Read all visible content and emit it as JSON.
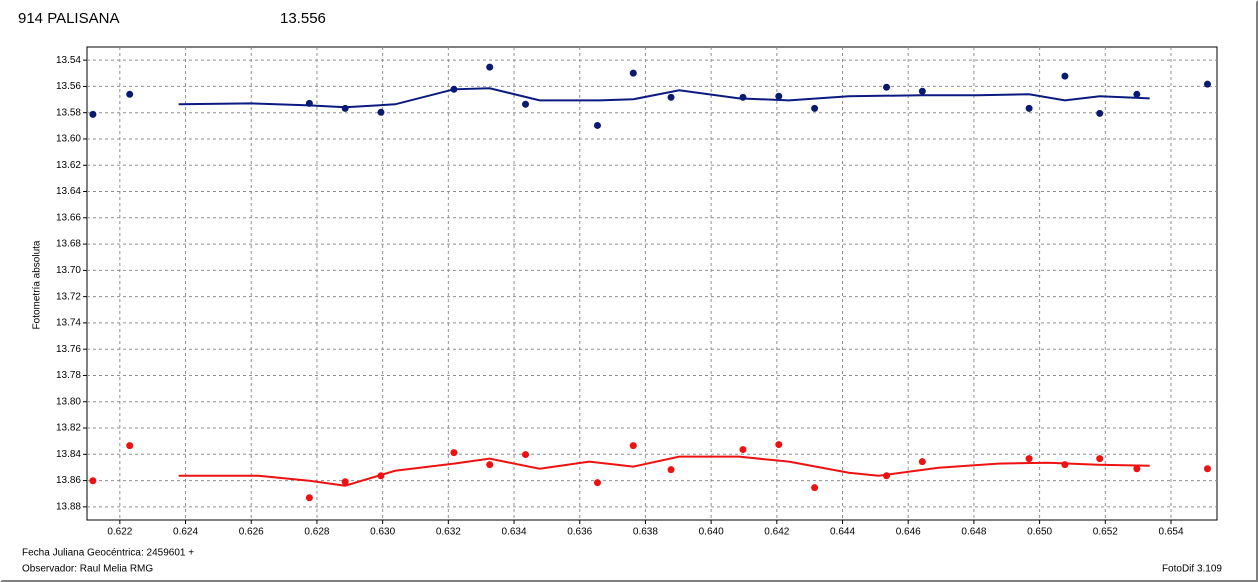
{
  "chart_data": {
    "type": "scatter",
    "title": "914 PALISANA",
    "title_color": "#ee1111",
    "subtitle": "13.556",
    "subtitle_color": "#0a1a80",
    "y_label": "Fotometría absoluta",
    "x_label": "Fecha Juliana Geocéntrica: 2459601 +",
    "observer": "Observador: Raul Melia RMG",
    "software": "FotoDif 3.109",
    "xlim": [
      0.621,
      0.6554
    ],
    "ylim": [
      13.53,
      13.89
    ],
    "y_inverted": true,
    "grid": true,
    "xticks": [
      0.622,
      0.624,
      0.626,
      0.628,
      {
        "value": 0.63,
        "label": "0.630"
      },
      0.632,
      0.634,
      0.636,
      0.638,
      {
        "value": 0.64,
        "label": "0.640"
      },
      0.642,
      0.644,
      0.646,
      0.648,
      {
        "value": 0.65,
        "label": "0.650"
      },
      0.652,
      0.654
    ],
    "yticks": [
      13.54,
      13.56,
      13.58,
      {
        "value": 13.6,
        "label": "13.60"
      },
      13.62,
      13.64,
      13.66,
      13.68,
      {
        "value": 13.7,
        "label": "13.70"
      },
      13.72,
      13.74,
      13.76,
      13.78,
      {
        "value": 13.8,
        "label": "13.80"
      },
      13.82,
      13.84,
      13.86,
      13.88
    ],
    "series": [
      {
        "mode": "markers",
        "color": "#0a1a6e",
        "x": [
          0.62118,
          0.6223,
          0.62777,
          0.62886,
          0.62995,
          0.63217,
          0.63326,
          0.63435,
          0.63654,
          0.63763,
          0.63878,
          0.64097,
          0.64206,
          0.64315,
          0.64534,
          0.64643,
          0.64968,
          0.65077,
          0.65183,
          0.65296,
          0.65511
        ],
        "values": [
          13.5813,
          13.566,
          13.5729,
          13.5767,
          13.5797,
          13.5622,
          13.5453,
          13.5736,
          13.5897,
          13.5499,
          13.5683,
          13.5683,
          13.5675,
          13.5767,
          13.5606,
          13.5637,
          13.5767,
          13.5522,
          13.5805,
          13.566,
          13.5583
        ]
      },
      {
        "mode": "markers",
        "color": "#ee1111",
        "x": [
          0.62118,
          0.6223,
          0.62777,
          0.62886,
          0.62995,
          0.63217,
          0.63326,
          0.63435,
          0.63654,
          0.63763,
          0.63878,
          0.64097,
          0.64206,
          0.64315,
          0.64534,
          0.64643,
          0.64968,
          0.65077,
          0.65183,
          0.65296,
          0.65511
        ],
        "values": [
          13.8601,
          13.8334,
          13.8731,
          13.8609,
          13.8563,
          13.8387,
          13.8479,
          13.8402,
          13.8616,
          13.8334,
          13.8517,
          13.8364,
          13.8326,
          13.8654,
          13.8563,
          13.8456,
          13.8433,
          13.8479,
          13.8433,
          13.851,
          13.851
        ]
      },
      {
        "mode": "line",
        "color": "#0a1a80",
        "x": [
          0.62379,
          0.62598,
          0.62777,
          0.62886,
          0.63038,
          0.63217,
          0.63326,
          0.63478,
          0.6366,
          0.63763,
          0.63903,
          0.64085,
          0.64237,
          0.64419,
          0.64643,
          0.64813,
          0.64968,
          0.65077,
          0.65183,
          0.65335
        ],
        "values": [
          13.5736,
          13.5729,
          13.5744,
          13.5759,
          13.5736,
          13.5622,
          13.5614,
          13.5706,
          13.5706,
          13.5698,
          13.5629,
          13.5691,
          13.5706,
          13.5675,
          13.5667,
          13.5667,
          13.566,
          13.5706,
          13.5675,
          13.5691
        ]
      },
      {
        "mode": "line",
        "color": "#ee1111",
        "x": [
          0.62379,
          0.62622,
          0.62777,
          0.62886,
          0.63038,
          0.63217,
          0.63326,
          0.63478,
          0.63629,
          0.63763,
          0.63903,
          0.64085,
          0.64237,
          0.64419,
          0.6451,
          0.64692,
          0.64874,
          0.65026,
          0.65177,
          0.65335
        ],
        "values": [
          13.8563,
          13.8563,
          13.8601,
          13.8639,
          13.8525,
          13.8471,
          13.8433,
          13.851,
          13.8456,
          13.8494,
          13.8418,
          13.8418,
          13.8456,
          13.854,
          13.8563,
          13.8502,
          13.8471,
          13.8464,
          13.8479,
          13.8487
        ]
      }
    ]
  }
}
